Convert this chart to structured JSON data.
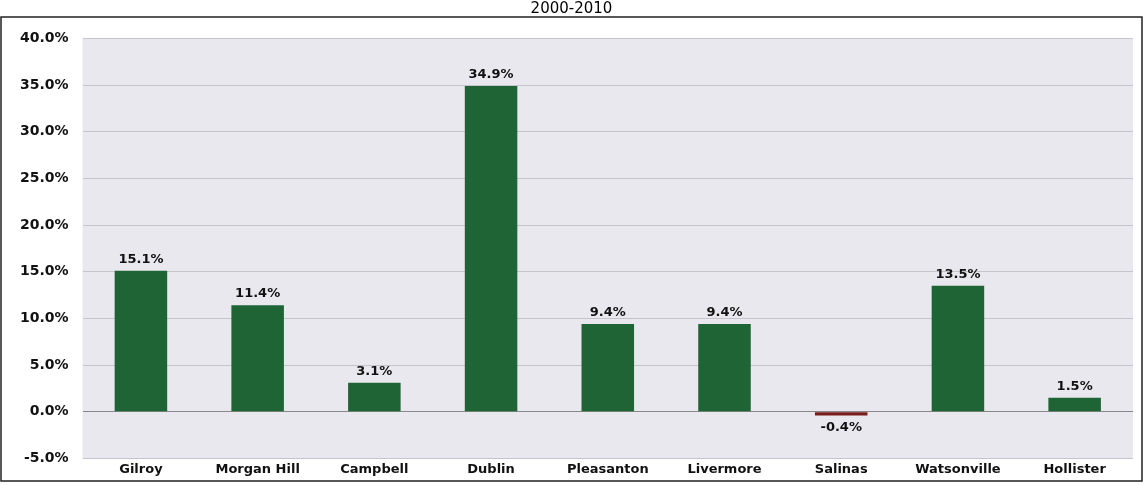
{
  "chart_data": {
    "type": "bar",
    "title": "2000-2010",
    "categories": [
      "Gilroy",
      "Morgan Hill",
      "Campbell",
      "Dublin",
      "Pleasanton",
      "Livermore",
      "Salinas",
      "Watsonville",
      "Hollister"
    ],
    "values": [
      15.1,
      11.4,
      3.1,
      34.9,
      9.4,
      9.4,
      -0.4,
      13.5,
      1.5
    ],
    "colors": [
      "#1e6434",
      "#1e6434",
      "#1e6434",
      "#1e6434",
      "#1e6434",
      "#1e6434",
      "#7a1c1c",
      "#1e6434",
      "#1e6434"
    ],
    "value_labels": [
      "15.1%",
      "11.4%",
      "3.1%",
      "34.9%",
      "9.4%",
      "9.4%",
      "-0.4%",
      "13.5%",
      "1.5%"
    ],
    "ylim": [
      -5,
      40
    ],
    "yticks": [
      {
        "value": -5,
        "label": "-5.0%"
      },
      {
        "value": 0,
        "label": "0.0%"
      },
      {
        "value": 5,
        "label": "5.0%"
      },
      {
        "value": 10,
        "label": "10.0%"
      },
      {
        "value": 15,
        "label": "15.0%"
      },
      {
        "value": 20,
        "label": "20.0%"
      },
      {
        "value": 25,
        "label": "25.0%"
      },
      {
        "value": 30,
        "label": "30.0%"
      },
      {
        "value": 35,
        "label": "35.0%"
      },
      {
        "value": 40,
        "label": "40.0%"
      }
    ],
    "grid": "y"
  }
}
